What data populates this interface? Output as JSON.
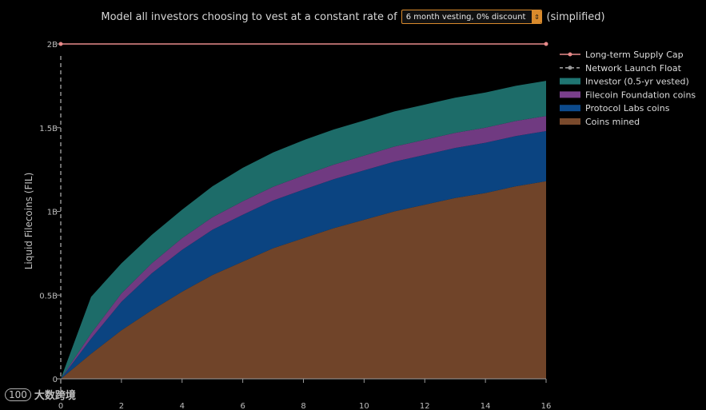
{
  "header": {
    "prefix": "Model all investors choosing to vest at a constant rate of",
    "select_value": "6 month vesting, 0% discount",
    "suffix": "(simplified)",
    "caret_icon": "chevron-updown-icon"
  },
  "watermark": {
    "logo": "100",
    "text": "大数跨境"
  },
  "chart_data": {
    "type": "area",
    "stacked": true,
    "title": "",
    "xlabel": "",
    "ylabel": "Liquid Filecoins (FIL)",
    "xlim": [
      0,
      16
    ],
    "ylim": [
      0,
      2000000000
    ],
    "xticks": [
      0,
      2,
      4,
      6,
      8,
      10,
      12,
      14,
      16
    ],
    "yticks": [
      {
        "value": 0,
        "label": "0"
      },
      {
        "value": 500000000,
        "label": "0.5B"
      },
      {
        "value": 1000000000,
        "label": "1B"
      },
      {
        "value": 1500000000,
        "label": "1.5B"
      },
      {
        "value": 2000000000,
        "label": "2B"
      }
    ],
    "x": [
      0,
      1,
      2,
      3,
      4,
      5,
      6,
      7,
      8,
      9,
      10,
      11,
      12,
      13,
      14,
      15,
      16
    ],
    "series": [
      {
        "name": "Coins mined",
        "color": "#7a4a2c",
        "values": [
          0,
          150000000,
          290000000,
          410000000,
          520000000,
          620000000,
          700000000,
          780000000,
          840000000,
          900000000,
          950000000,
          1000000000,
          1040000000,
          1080000000,
          1110000000,
          1150000000,
          1180000000
        ]
      },
      {
        "name": "Protocol Labs coins",
        "color": "#0c4a8c",
        "values": [
          0,
          90000000,
          170000000,
          220000000,
          250000000,
          270000000,
          280000000,
          285000000,
          290000000,
          292000000,
          295000000,
          297000000,
          298000000,
          299000000,
          300000000,
          300000000,
          300000000
        ]
      },
      {
        "name": "Filecoin Foundation coins",
        "color": "#7a3f8c",
        "values": [
          0,
          30000000,
          50000000,
          60000000,
          70000000,
          75000000,
          80000000,
          82000000,
          85000000,
          87000000,
          88000000,
          90000000,
          90000000,
          90000000,
          90000000,
          90000000,
          90000000
        ]
      },
      {
        "name": "Investor (0.5-yr vested)",
        "color": "#1f7572",
        "values": [
          0,
          220000000,
          180000000,
          170000000,
          170000000,
          185000000,
          200000000,
          205000000,
          210000000,
          210000000,
          210000000,
          210000000,
          210000000,
          210000000,
          210000000,
          210000000,
          210000000
        ]
      }
    ],
    "lines": [
      {
        "name": "Long-term Supply Cap",
        "color": "#e88a8a",
        "style": "solid-marker",
        "value": 2000000000
      },
      {
        "name": "Network Launch Float",
        "color": "#9a9a9a",
        "style": "dashed-marker",
        "x_value": 0
      }
    ],
    "legend_order": [
      "Long-term Supply Cap",
      "Network Launch Float",
      "Investor (0.5-yr vested)",
      "Filecoin Foundation coins",
      "Protocol Labs coins",
      "Coins mined"
    ],
    "legend_position": "top-right"
  }
}
